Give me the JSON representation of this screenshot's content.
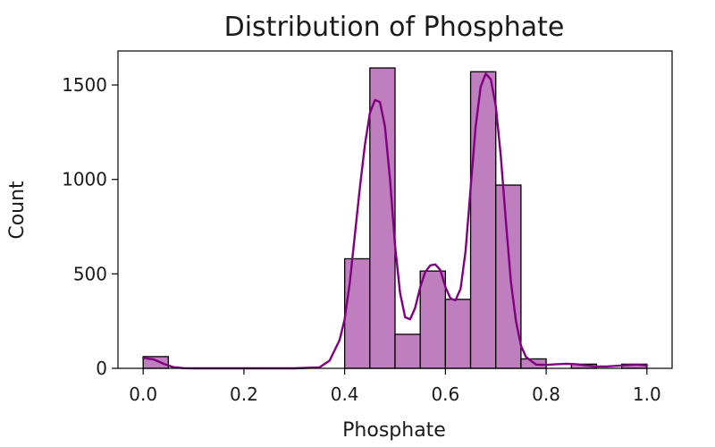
{
  "chart_data": {
    "type": "bar",
    "title": "Distribution of Phosphate",
    "xlabel": "Phosphate",
    "ylabel": "Count",
    "xlim": [
      -0.05,
      1.05
    ],
    "ylim": [
      0,
      1680
    ],
    "xticks": [
      "0.0",
      "0.2",
      "0.4",
      "0.6",
      "0.8",
      "1.0"
    ],
    "xtick_values": [
      0.0,
      0.2,
      0.4,
      0.6,
      0.8,
      1.0
    ],
    "yticks": [
      "0",
      "500",
      "1000",
      "1500"
    ],
    "ytick_values": [
      0,
      500,
      1000,
      1500
    ],
    "bin_width": 0.05,
    "bins": [
      {
        "start": 0.0,
        "count": 62
      },
      {
        "start": 0.05,
        "count": 0
      },
      {
        "start": 0.1,
        "count": 0
      },
      {
        "start": 0.15,
        "count": 0
      },
      {
        "start": 0.2,
        "count": 0
      },
      {
        "start": 0.25,
        "count": 0
      },
      {
        "start": 0.3,
        "count": 0
      },
      {
        "start": 0.35,
        "count": 0
      },
      {
        "start": 0.4,
        "count": 580
      },
      {
        "start": 0.45,
        "count": 1590
      },
      {
        "start": 0.5,
        "count": 180
      },
      {
        "start": 0.55,
        "count": 515
      },
      {
        "start": 0.6,
        "count": 365
      },
      {
        "start": 0.65,
        "count": 1570
      },
      {
        "start": 0.7,
        "count": 970
      },
      {
        "start": 0.75,
        "count": 50
      },
      {
        "start": 0.8,
        "count": 0
      },
      {
        "start": 0.85,
        "count": 22
      },
      {
        "start": 0.9,
        "count": 0
      },
      {
        "start": 0.95,
        "count": 22
      }
    ],
    "kde": {
      "x": [
        0.0,
        0.02,
        0.04,
        0.06,
        0.08,
        0.1,
        0.2,
        0.3,
        0.35,
        0.37,
        0.39,
        0.4,
        0.41,
        0.42,
        0.43,
        0.44,
        0.45,
        0.46,
        0.47,
        0.48,
        0.49,
        0.5,
        0.51,
        0.52,
        0.53,
        0.54,
        0.55,
        0.56,
        0.57,
        0.58,
        0.59,
        0.6,
        0.61,
        0.62,
        0.63,
        0.64,
        0.65,
        0.66,
        0.67,
        0.68,
        0.69,
        0.7,
        0.71,
        0.72,
        0.73,
        0.74,
        0.75,
        0.76,
        0.78,
        0.8,
        0.82,
        0.84,
        0.86,
        0.88,
        0.9,
        0.92,
        0.95,
        0.98,
        1.0
      ],
      "y": [
        55,
        48,
        25,
        6,
        1,
        0,
        0,
        0,
        5,
        40,
        150,
        260,
        450,
        700,
        950,
        1180,
        1350,
        1420,
        1410,
        1280,
        1000,
        650,
        400,
        270,
        260,
        320,
        430,
        510,
        545,
        550,
        520,
        430,
        370,
        360,
        420,
        620,
        950,
        1280,
        1490,
        1560,
        1530,
        1390,
        1120,
        780,
        460,
        250,
        120,
        60,
        20,
        18,
        22,
        24,
        22,
        15,
        10,
        10,
        15,
        20,
        15
      ]
    },
    "colors": {
      "bar_fill": "#bf7fbf",
      "bar_edge": "#000000",
      "kde_line": "#800080",
      "axis": "#000000"
    }
  }
}
